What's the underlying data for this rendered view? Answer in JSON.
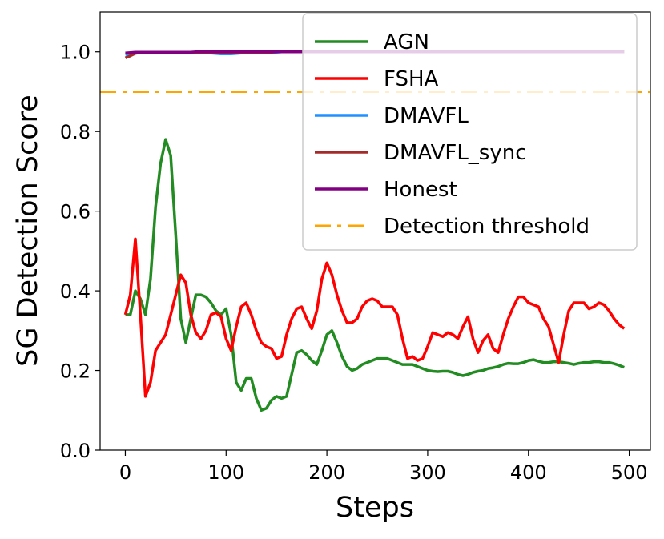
{
  "chart_data": {
    "type": "line",
    "title": "",
    "xlabel": "Steps",
    "ylabel": "SG Detection Score",
    "xlim": [
      -25,
      521
    ],
    "ylim": [
      0,
      1.1
    ],
    "xticks": [
      0,
      100,
      200,
      300,
      400,
      500
    ],
    "yticks": [
      0.0,
      0.2,
      0.4,
      0.6,
      0.8,
      1.0
    ],
    "ytick_labels": [
      "0.0",
      "0.2",
      "0.4",
      "0.6",
      "0.8",
      "1.0"
    ],
    "grid": false,
    "legend_position": "top-right",
    "x_step": 5,
    "series": [
      {
        "name": "AGN",
        "color": "#228B22",
        "style": "solid",
        "values": [
          0.34,
          0.34,
          0.4,
          0.38,
          0.34,
          0.43,
          0.61,
          0.72,
          0.78,
          0.74,
          0.54,
          0.33,
          0.27,
          0.33,
          0.39,
          0.39,
          0.385,
          0.37,
          0.35,
          0.34,
          0.355,
          0.29,
          0.17,
          0.15,
          0.18,
          0.18,
          0.13,
          0.1,
          0.105,
          0.125,
          0.135,
          0.13,
          0.135,
          0.19,
          0.245,
          0.25,
          0.24,
          0.225,
          0.215,
          0.25,
          0.29,
          0.3,
          0.27,
          0.235,
          0.21,
          0.2,
          0.205,
          0.215,
          0.22,
          0.225,
          0.23,
          0.23,
          0.23,
          0.225,
          0.22,
          0.215,
          0.215,
          0.215,
          0.21,
          0.205,
          0.2,
          0.198,
          0.197,
          0.198,
          0.198,
          0.195,
          0.19,
          0.187,
          0.19,
          0.195,
          0.198,
          0.2,
          0.205,
          0.207,
          0.21,
          0.215,
          0.218,
          0.217,
          0.217,
          0.22,
          0.225,
          0.227,
          0.223,
          0.22,
          0.22,
          0.222,
          0.222,
          0.22,
          0.218,
          0.215,
          0.218,
          0.22,
          0.22,
          0.222,
          0.222,
          0.22,
          0.22,
          0.217,
          0.213,
          0.208
        ]
      },
      {
        "name": "FSHA",
        "color": "#FF0000",
        "style": "solid",
        "values": [
          0.34,
          0.39,
          0.53,
          0.34,
          0.135,
          0.17,
          0.25,
          0.27,
          0.29,
          0.34,
          0.39,
          0.44,
          0.42,
          0.34,
          0.295,
          0.28,
          0.3,
          0.34,
          0.345,
          0.335,
          0.28,
          0.25,
          0.31,
          0.36,
          0.37,
          0.34,
          0.3,
          0.27,
          0.26,
          0.255,
          0.23,
          0.235,
          0.29,
          0.33,
          0.355,
          0.36,
          0.33,
          0.305,
          0.35,
          0.43,
          0.47,
          0.44,
          0.39,
          0.35,
          0.32,
          0.32,
          0.33,
          0.36,
          0.375,
          0.38,
          0.375,
          0.36,
          0.36,
          0.36,
          0.34,
          0.28,
          0.23,
          0.235,
          0.225,
          0.23,
          0.26,
          0.295,
          0.29,
          0.285,
          0.295,
          0.29,
          0.28,
          0.31,
          0.335,
          0.28,
          0.245,
          0.275,
          0.29,
          0.255,
          0.245,
          0.29,
          0.33,
          0.36,
          0.385,
          0.385,
          0.37,
          0.365,
          0.36,
          0.33,
          0.31,
          0.265,
          0.22,
          0.29,
          0.35,
          0.37,
          0.37,
          0.37,
          0.355,
          0.36,
          0.37,
          0.365,
          0.35,
          0.33,
          0.315,
          0.305
        ]
      },
      {
        "name": "DMAVFL",
        "color": "#1E90FF",
        "style": "solid",
        "values": [
          0.993,
          0.996,
          0.998,
          0.999,
          0.999,
          0.999,
          0.999,
          0.999,
          0.999,
          0.999,
          0.999,
          0.999,
          0.999,
          0.999,
          0.999,
          0.999,
          0.998,
          0.997,
          0.996,
          0.995,
          0.995,
          0.995,
          0.996,
          0.997,
          0.998,
          0.999,
          0.999,
          0.999,
          0.999,
          0.999,
          0.999,
          1,
          1,
          1,
          1,
          1,
          1,
          1,
          1,
          1,
          1,
          1,
          1,
          1,
          1,
          1,
          1,
          1,
          1,
          1,
          1,
          1,
          1,
          1,
          1,
          1,
          1,
          1,
          1,
          1,
          1,
          1,
          1,
          1,
          1,
          1,
          1,
          1,
          1,
          1,
          1,
          1,
          1,
          1,
          1,
          1,
          1,
          1,
          1,
          1,
          1,
          1,
          1,
          1,
          1,
          1,
          1,
          1,
          1,
          1,
          1,
          1,
          1,
          1,
          1,
          1,
          1,
          1,
          1,
          1
        ]
      },
      {
        "name": "DMAVFL_sync",
        "color": "#A52A2A",
        "style": "solid",
        "values": [
          0.985,
          0.99,
          0.996,
          0.998,
          0.999,
          0.999,
          0.999,
          0.999,
          0.999,
          0.999,
          0.999,
          0.999,
          0.999,
          0.999,
          0.999,
          0.999,
          0.999,
          0.999,
          0.999,
          0.999,
          0.999,
          0.999,
          0.999,
          0.999,
          0.999,
          0.999,
          0.999,
          0.999,
          0.999,
          0.999,
          1,
          1,
          1,
          1,
          1,
          1,
          1,
          1,
          1,
          1,
          1,
          1,
          1,
          1,
          1,
          1,
          1,
          1,
          1,
          1,
          1,
          1,
          1,
          1,
          1,
          1,
          1,
          1,
          1,
          1,
          1,
          1,
          1,
          1,
          1,
          1,
          1,
          1,
          1,
          1,
          1,
          1,
          1,
          1,
          1,
          1,
          1,
          1,
          1,
          1,
          1,
          1,
          1,
          1,
          1,
          1,
          1,
          1,
          1,
          1,
          1,
          1,
          1,
          1,
          1,
          1,
          1,
          1,
          1,
          1
        ]
      },
      {
        "name": "Honest",
        "color": "#800080",
        "style": "solid",
        "values": [
          0.997,
          0.998,
          0.999,
          0.999,
          0.999,
          0.999,
          0.999,
          0.999,
          0.999,
          0.999,
          0.999,
          0.999,
          0.999,
          0.999,
          1,
          1,
          1,
          1,
          1,
          1,
          1,
          1,
          1,
          1,
          1,
          1,
          1,
          1,
          1,
          1,
          1,
          1,
          1,
          1,
          1,
          1,
          1,
          1,
          1,
          1,
          1,
          1,
          1,
          1,
          1,
          1,
          1,
          1,
          1,
          1,
          1,
          1,
          1,
          1,
          1,
          1,
          1,
          1,
          1,
          1,
          1,
          1,
          1,
          1,
          1,
          1,
          1,
          1,
          1,
          1,
          1,
          1,
          1,
          1,
          1,
          1,
          1,
          1,
          1,
          1,
          1,
          1,
          1,
          1,
          1,
          1,
          1,
          1,
          1,
          1,
          1,
          1,
          1,
          1,
          1,
          1,
          1,
          1,
          1,
          1
        ]
      },
      {
        "name": "Detection threshold",
        "color": "#FFA500",
        "style": "dashdot",
        "hline": 0.9
      }
    ]
  }
}
